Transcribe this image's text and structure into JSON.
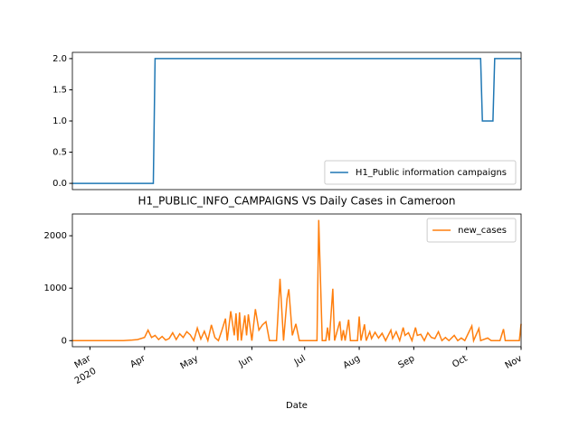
{
  "chart_data": [
    {
      "type": "line",
      "xlim": [
        "2020-02-20",
        "2020-11-01"
      ],
      "ylim": [
        -0.1,
        2.1
      ],
      "yticks": [
        {
          "value": 0,
          "label": "0.0"
        },
        {
          "value": 0.5,
          "label": "0.5"
        },
        {
          "value": 1,
          "label": "1.0"
        },
        {
          "value": 1.5,
          "label": "1.5"
        },
        {
          "value": 2,
          "label": "2.0"
        }
      ],
      "legend": "lower right",
      "series": [
        {
          "name": "H1_Public information campaigns",
          "color": "#1f77b4",
          "x": [
            "2020-02-20",
            "2020-04-06",
            "2020-04-07",
            "2020-10-09",
            "2020-10-10",
            "2020-10-16",
            "2020-10-17",
            "2020-11-01"
          ],
          "values": [
            0,
            0,
            2,
            2,
            1,
            1,
            2,
            2
          ]
        }
      ]
    },
    {
      "type": "line",
      "title": "H1_PUBLIC_INFO_CAMPAIGNS VS Daily Cases in Cameroon",
      "x_label": "Date",
      "xlim": [
        "2020-02-20",
        "2020-11-01"
      ],
      "xticks": [
        {
          "value": "2020-03-01",
          "label": "Mar"
        },
        {
          "value": "2020-04-01",
          "label": "Apr"
        },
        {
          "value": "2020-05-01",
          "label": "May"
        },
        {
          "value": "2020-06-01",
          "label": "Jun"
        },
        {
          "value": "2020-07-01",
          "label": "Jul"
        },
        {
          "value": "2020-08-01",
          "label": "Aug"
        },
        {
          "value": "2020-09-01",
          "label": "Sep"
        },
        {
          "value": "2020-10-01",
          "label": "Oct"
        },
        {
          "value": "2020-11-01",
          "label": "Nov"
        }
      ],
      "xtick_year": "2020",
      "ylim": [
        -116,
        2415
      ],
      "yticks": [
        0,
        1000,
        2000
      ],
      "legend": "upper right",
      "series": [
        {
          "name": "new_cases",
          "color": "#ff7f0e",
          "x": [
            "2020-02-20",
            "2020-03-20",
            "2020-03-25",
            "2020-03-28",
            "2020-04-01",
            "2020-04-03",
            "2020-04-05",
            "2020-04-07",
            "2020-04-09",
            "2020-04-11",
            "2020-04-13",
            "2020-04-15",
            "2020-04-17",
            "2020-04-19",
            "2020-04-21",
            "2020-04-23",
            "2020-04-25",
            "2020-04-27",
            "2020-04-29",
            "2020-05-01",
            "2020-05-03",
            "2020-05-05",
            "2020-05-07",
            "2020-05-09",
            "2020-05-11",
            "2020-05-13",
            "2020-05-15",
            "2020-05-17",
            "2020-05-18",
            "2020-05-20",
            "2020-05-22",
            "2020-05-23",
            "2020-05-24",
            "2020-05-25",
            "2020-05-26",
            "2020-05-28",
            "2020-05-29",
            "2020-05-30",
            "2020-06-01",
            "2020-06-03",
            "2020-06-05",
            "2020-06-07",
            "2020-06-09",
            "2020-06-11",
            "2020-06-15",
            "2020-06-17",
            "2020-06-19",
            "2020-06-21",
            "2020-06-22",
            "2020-06-24",
            "2020-06-26",
            "2020-06-28",
            "2020-07-08",
            "2020-07-09",
            "2020-07-11",
            "2020-07-13",
            "2020-07-14",
            "2020-07-15",
            "2020-07-17",
            "2020-07-18",
            "2020-07-21",
            "2020-07-22",
            "2020-07-23",
            "2020-07-24",
            "2020-07-26",
            "2020-07-27",
            "2020-07-31",
            "2020-08-01",
            "2020-08-02",
            "2020-08-04",
            "2020-08-05",
            "2020-08-07",
            "2020-08-08",
            "2020-08-10",
            "2020-08-12",
            "2020-08-14",
            "2020-08-16",
            "2020-08-19",
            "2020-08-20",
            "2020-08-22",
            "2020-08-24",
            "2020-08-26",
            "2020-08-27",
            "2020-08-29",
            "2020-08-31",
            "2020-09-02",
            "2020-09-03",
            "2020-09-05",
            "2020-09-07",
            "2020-09-09",
            "2020-09-11",
            "2020-09-13",
            "2020-09-15",
            "2020-09-17",
            "2020-09-19",
            "2020-09-21",
            "2020-09-24",
            "2020-09-26",
            "2020-09-28",
            "2020-09-30",
            "2020-10-04",
            "2020-10-05",
            "2020-10-08",
            "2020-10-09",
            "2020-10-13",
            "2020-10-15",
            "2020-10-20",
            "2020-10-22",
            "2020-10-23",
            "2020-10-31",
            "2020-11-01"
          ],
          "values": [
            0,
            0,
            10,
            20,
            60,
            200,
            60,
            100,
            20,
            80,
            10,
            40,
            150,
            20,
            130,
            60,
            170,
            110,
            0,
            240,
            30,
            180,
            0,
            300,
            60,
            0,
            200,
            420,
            0,
            560,
            100,
            520,
            0,
            540,
            0,
            480,
            100,
            500,
            0,
            600,
            200,
            300,
            360,
            0,
            0,
            1180,
            0,
            800,
            980,
            100,
            320,
            0,
            0,
            2300,
            0,
            0,
            250,
            0,
            990,
            0,
            370,
            0,
            200,
            0,
            400,
            0,
            0,
            460,
            0,
            310,
            0,
            170,
            40,
            160,
            50,
            140,
            0,
            200,
            40,
            170,
            0,
            250,
            100,
            150,
            0,
            250,
            100,
            120,
            0,
            150,
            60,
            40,
            170,
            0,
            60,
            0,
            100,
            0,
            50,
            0,
            280,
            0,
            230,
            0,
            50,
            0,
            0,
            220,
            0,
            0,
            320
          ]
        }
      ]
    }
  ]
}
